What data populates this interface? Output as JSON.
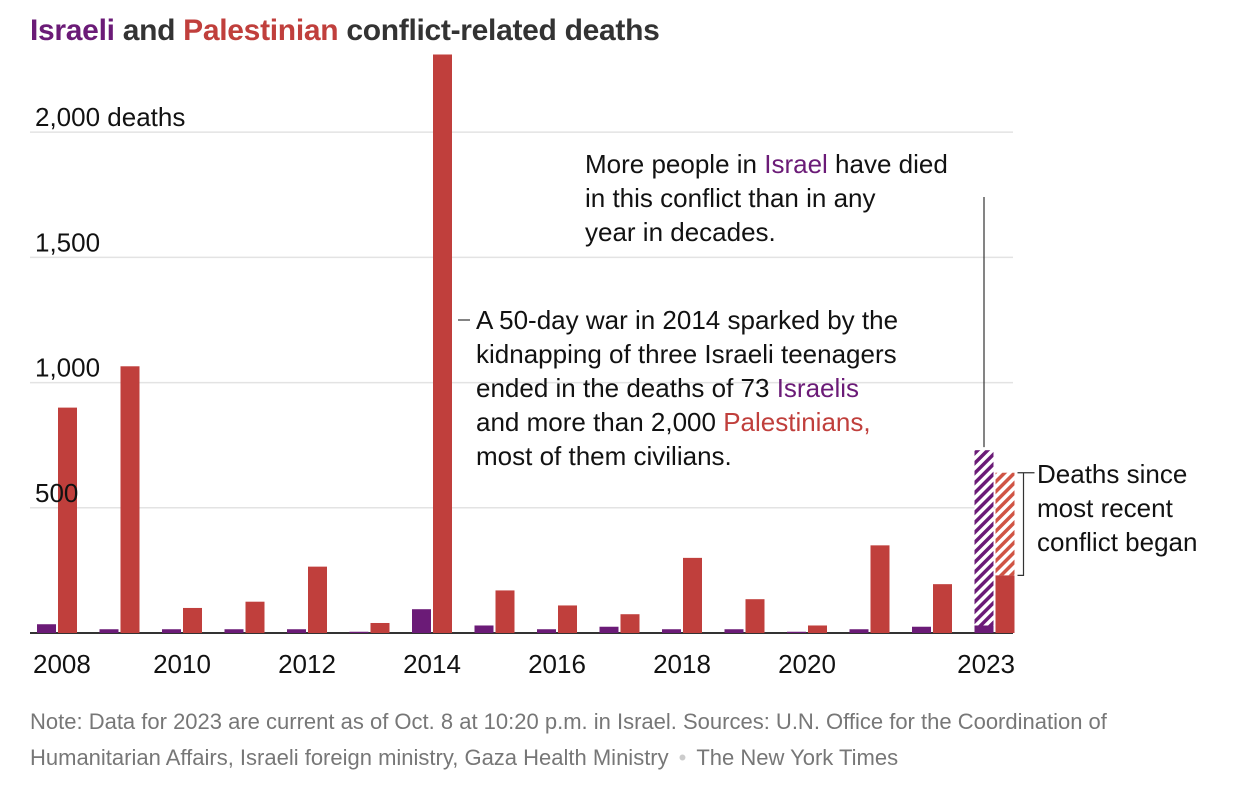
{
  "title": {
    "israeli": "Israeli",
    "and": "and",
    "palestinian": "Palestinian",
    "rest": "conflict-related deaths"
  },
  "colors": {
    "israeli": "#6b1b77",
    "palestinian": "#c03f3c",
    "palestinian_light": "#e68a7a",
    "grid": "#e3e3e3",
    "axis": "#333333"
  },
  "chart_data": {
    "type": "bar",
    "title": "Israeli and Palestinian conflict-related deaths",
    "categories": [
      "2008",
      "2009",
      "2010",
      "2011",
      "2012",
      "2013",
      "2014",
      "2015",
      "2016",
      "2017",
      "2018",
      "2019",
      "2020",
      "2021",
      "2022",
      "2023"
    ],
    "x_tick_labels": [
      "2008",
      "2010",
      "2012",
      "2014",
      "2016",
      "2018",
      "2020",
      "2023"
    ],
    "y_tick_labels": [
      "2,000 deaths",
      "1,500",
      "1,000",
      "500"
    ],
    "y_ticks": [
      2000,
      1500,
      1000,
      500
    ],
    "ylim": [
      0,
      2300
    ],
    "grid": true,
    "series": [
      {
        "name": "Israeli",
        "values": [
          35,
          15,
          15,
          15,
          15,
          5,
          95,
          30,
          15,
          25,
          15,
          15,
          5,
          15,
          25,
          730
        ],
        "since_conflict": 700
      },
      {
        "name": "Palestinian",
        "values": [
          900,
          1065,
          100,
          125,
          265,
          40,
          2310,
          170,
          110,
          75,
          300,
          135,
          30,
          350,
          195,
          640
        ],
        "since_conflict": 410
      }
    ]
  },
  "annotations": {
    "israel": {
      "line1_pre": "More people in ",
      "line1_hl": "Israel",
      "line1_post": " have died",
      "line2": "in this conflict than in any",
      "line3": "year in decades."
    },
    "war2014": {
      "line1": "A 50-day war in 2014 sparked by the",
      "line2": "kidnapping of three Israeli teenagers",
      "line3_pre": "ended in the deaths of 73 ",
      "line3_hl": "Israelis",
      "line4_pre": "and more than 2,000 ",
      "line4_hl": "Palestinians,",
      "line5": "most of them civilians."
    },
    "since": {
      "line1": "Deaths since",
      "line2": "most recent",
      "line3": "conflict began"
    }
  },
  "footer": {
    "note": "Note: Data for 2023 are current as of Oct. 8 at 10:20 p.m. in Israel. Sources: U.N. Office for the Coordination of Humanitarian Affairs, Israeli foreign ministry, Gaza Health Ministry",
    "credit": "The New York Times"
  }
}
